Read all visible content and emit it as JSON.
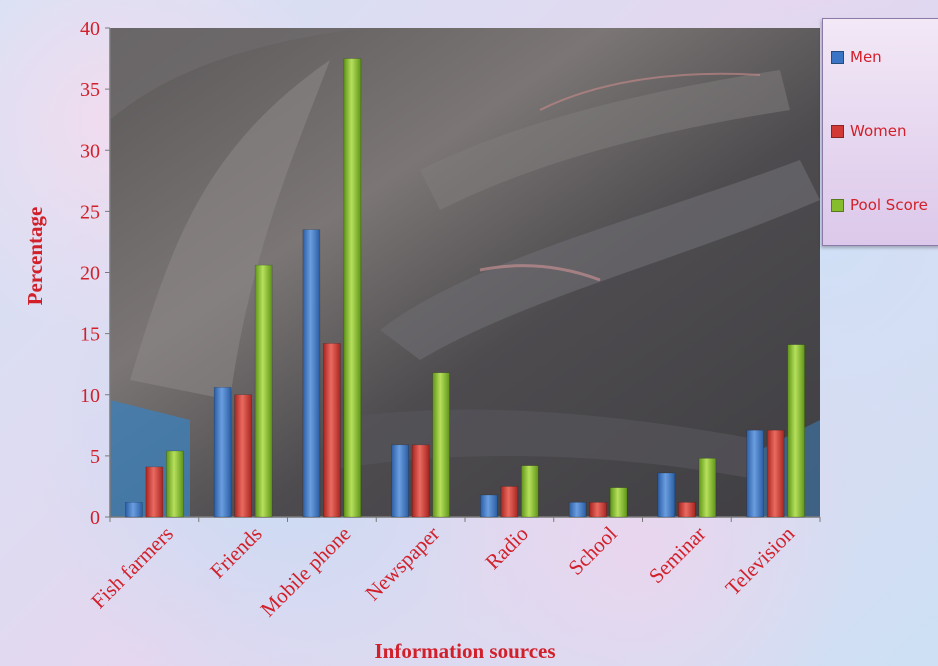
{
  "chart_data": {
    "type": "bar",
    "xlabel": "Information sources",
    "ylabel": "Percentage",
    "ylim": [
      0,
      40
    ],
    "yticks": [
      0,
      5,
      10,
      15,
      20,
      25,
      30,
      35,
      40
    ],
    "categories": [
      "Fish farmers",
      "Friends",
      "Mobile phone",
      "Newspaper",
      "Radio",
      "School",
      "Seminar",
      "Television"
    ],
    "series": [
      {
        "name": "Men",
        "color": "#3a74c4",
        "values": [
          1.2,
          10.6,
          23.5,
          5.9,
          1.8,
          1.2,
          3.6,
          7.1
        ]
      },
      {
        "name": "Women",
        "color": "#d23a35",
        "values": [
          4.1,
          10.0,
          14.2,
          5.9,
          2.5,
          1.2,
          1.2,
          7.1
        ]
      },
      {
        "name": "Pool Score",
        "color": "#86bd2c",
        "values": [
          5.4,
          20.6,
          37.5,
          11.8,
          4.2,
          2.4,
          4.8,
          14.1
        ]
      }
    ],
    "legend_position": "right",
    "grid": false,
    "colors": {
      "text": "#d2202a",
      "axis": "#7a7a7a"
    }
  }
}
